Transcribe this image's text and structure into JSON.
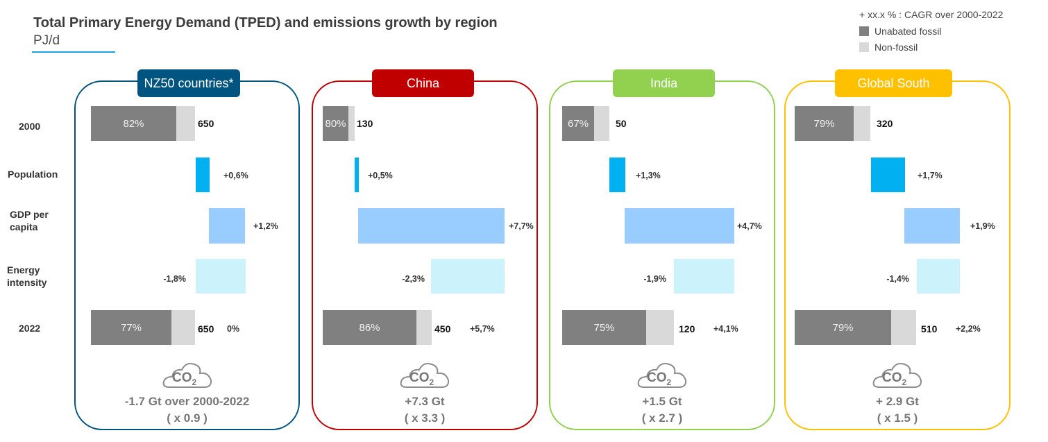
{
  "header": {
    "title": "Total Primary Energy Demand (TPED)  and emissions growth by region",
    "unit": "PJ/d"
  },
  "legend": {
    "note": "+ xx.x % : CAGR over 2000-2022",
    "items": [
      {
        "label": "Unabated fossil",
        "color": "#808080"
      },
      {
        "label": "Non-fossil",
        "color": "#d9d9d9"
      }
    ]
  },
  "chart_data": {
    "type": "bar",
    "subtype": "waterfall",
    "title": "Total Primary Energy Demand (TPED)  and emissions growth by region",
    "unit": "PJ/d",
    "row_labels": [
      "2000",
      "Population",
      "GDP per capita",
      "Energy intensity",
      "2022"
    ],
    "colors": {
      "population": "#00b0f0",
      "gdp": "#99ccff",
      "intensity": "#ccf2fc",
      "fossil": "#808080",
      "nonfossil": "#d9d9d9"
    },
    "regions": [
      {
        "name": "NZ50 countries*",
        "color": "#005580",
        "tped_2000": 650,
        "fossil_share_2000": "82%",
        "population_cagr": "+0,6%",
        "gdp_cagr": "+1,2%",
        "intensity_cagr": "-1,8%",
        "tped_2022": 650,
        "fossil_share_2022": "77%",
        "tped_cagr": "0%",
        "co2_label": "CO2",
        "co2_change": "-1.7 Gt over 2000-2022",
        "co2_factor": "( x 0.9 )"
      },
      {
        "name": "China",
        "color": "#c00000",
        "tped_2000": 130,
        "fossil_share_2000": "80%",
        "population_cagr": "+0,5%",
        "gdp_cagr": "+7,7%",
        "intensity_cagr": "-2,3%",
        "tped_2022": 450,
        "fossil_share_2022": "86%",
        "tped_cagr": "+5,7%",
        "co2_label": "CO2",
        "co2_change": "+7.3 Gt",
        "co2_factor": "( x 3.3 )"
      },
      {
        "name": "India",
        "color": "#92d050",
        "tped_2000": 50,
        "fossil_share_2000": "67%",
        "population_cagr": "+1,3%",
        "gdp_cagr": "+4,7%",
        "intensity_cagr": "-1,9%",
        "tped_2022": 120,
        "fossil_share_2022": "75%",
        "tped_cagr": "+4,1%",
        "co2_label": "CO2",
        "co2_change": "+1.5 Gt",
        "co2_factor": "( x 2.7 )"
      },
      {
        "name": "Global South",
        "color": "#ffc000",
        "tped_2000": 320,
        "fossil_share_2000": "79%",
        "population_cagr": "+1,7%",
        "gdp_cagr": "+1,9%",
        "intensity_cagr": "-1,4%",
        "tped_2022": 510,
        "fossil_share_2022": "79%",
        "tped_cagr": "+2,2%",
        "co2_label": "CO2",
        "co2_change": "+ 2.9 Gt",
        "co2_factor": "( x 1.5 )"
      }
    ]
  }
}
